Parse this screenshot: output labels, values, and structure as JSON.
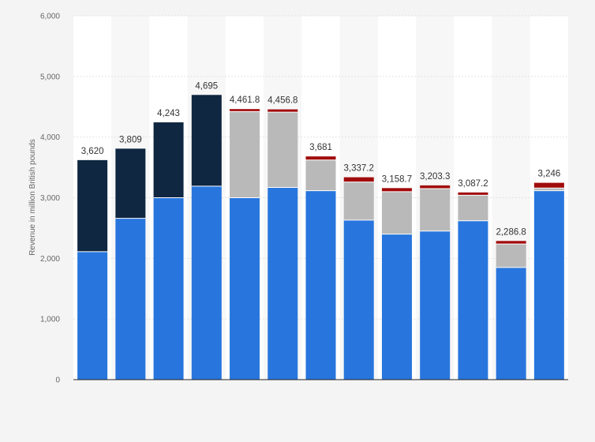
{
  "chart_data": {
    "type": "bar",
    "stacked": true,
    "ylabel": "Revenue in million British pounds",
    "xlabel": "",
    "ylim": [
      0,
      6000
    ],
    "yticks": [
      0,
      1000,
      2000,
      3000,
      4000,
      5000,
      6000
    ],
    "ytick_labels": [
      "0",
      "1,000",
      "2,000",
      "3,000",
      "4,000",
      "5,000",
      "6,000"
    ],
    "grid": true,
    "legend": "none",
    "categories": [
      "",
      "",
      "",
      "",
      "",
      "",
      "",
      "",
      "",
      "",
      "",
      "",
      ""
    ],
    "totals": [
      3620,
      3809,
      4243,
      4695,
      4461.8,
      4456.8,
      3681,
      3337.2,
      3158.7,
      3203.3,
      3087.2,
      2286.8,
      3246
    ],
    "total_labels": [
      "3,620",
      "3,809",
      "4,243",
      "4,695",
      "4,461.8",
      "4,456.8",
      "3,681",
      "3,337.2",
      "3,158.7",
      "3,203.3",
      "3,087.2",
      "2,286.8",
      "3,246"
    ],
    "series": [
      {
        "color": "#2876dd",
        "values": [
          2110,
          2660,
          3000,
          3190,
          3000,
          3170,
          3115,
          2630,
          2400,
          2450,
          2620,
          1850,
          3115
        ]
      },
      {
        "color": "#0f2741",
        "values": [
          1510,
          1149,
          1243,
          1505,
          0,
          0,
          0,
          0,
          0,
          0,
          0,
          0,
          0
        ]
      },
      {
        "color": "#b9b9b9",
        "values": [
          0,
          0,
          0,
          0,
          1420,
          1240,
          506,
          628,
          700,
          700,
          420,
          387,
          45
        ]
      },
      {
        "color": "#a10c0c",
        "values": [
          0,
          0,
          0,
          0,
          41.8,
          46.8,
          60,
          79.2,
          58.7,
          53.3,
          47.2,
          49.8,
          86
        ]
      }
    ]
  },
  "colors": {
    "background": "#f4f4f4",
    "plot_background": "#ffffff",
    "band": "#f7f7f7",
    "grid": "#e2e2e2",
    "axis": "#222222"
  }
}
